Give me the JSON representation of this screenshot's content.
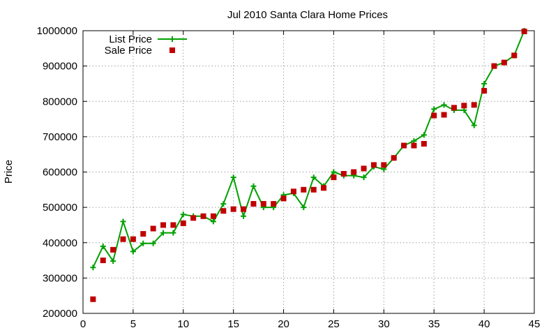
{
  "chart_data": {
    "type": "line",
    "title": "Jul 2010 Santa Clara Home Prices",
    "xlabel": "",
    "ylabel": "Price",
    "xlim": [
      0,
      45
    ],
    "ylim": [
      200000,
      1000000
    ],
    "x_ticks": [
      "0",
      "5",
      "10",
      "15",
      "20",
      "25",
      "30",
      "35",
      "40",
      "45"
    ],
    "y_ticks": [
      "200000",
      "300000",
      "400000",
      "500000",
      "600000",
      "700000",
      "800000",
      "900000",
      "1000000"
    ],
    "grid": true,
    "legend_position": "top-left",
    "x": [
      1,
      2,
      3,
      4,
      5,
      6,
      7,
      8,
      9,
      10,
      11,
      12,
      13,
      14,
      15,
      16,
      17,
      18,
      19,
      20,
      21,
      22,
      23,
      24,
      25,
      26,
      27,
      28,
      29,
      30,
      31,
      32,
      33,
      34,
      35,
      36,
      37,
      38,
      39,
      40,
      41,
      42,
      43,
      44
    ],
    "series": [
      {
        "name": "List Price",
        "style": "linespoints",
        "color": "#00a000",
        "marker": "plus",
        "values": [
          330000,
          390000,
          348000,
          460000,
          375000,
          398000,
          398000,
          428000,
          428000,
          480000,
          475000,
          475000,
          460000,
          510000,
          585000,
          475000,
          560000,
          500000,
          500000,
          535000,
          540000,
          500000,
          585000,
          560000,
          600000,
          590000,
          590000,
          585000,
          615000,
          608000,
          640000,
          675000,
          688000,
          705000,
          778000,
          790000,
          775000,
          775000,
          732000,
          850000,
          900000,
          910000,
          930000,
          1000000
        ]
      },
      {
        "name": "Sale Price",
        "style": "points",
        "color": "#c00000",
        "marker": "square",
        "values": [
          240000,
          350000,
          380000,
          410000,
          410000,
          425000,
          440000,
          450000,
          450000,
          455000,
          470000,
          475000,
          475000,
          490000,
          495000,
          495000,
          510000,
          510000,
          510000,
          525000,
          545000,
          550000,
          550000,
          555000,
          585000,
          595000,
          600000,
          610000,
          620000,
          620000,
          640000,
          675000,
          675000,
          680000,
          760000,
          762000,
          782000,
          788000,
          790000,
          830000,
          900000,
          910000,
          930000,
          998000
        ]
      }
    ]
  }
}
